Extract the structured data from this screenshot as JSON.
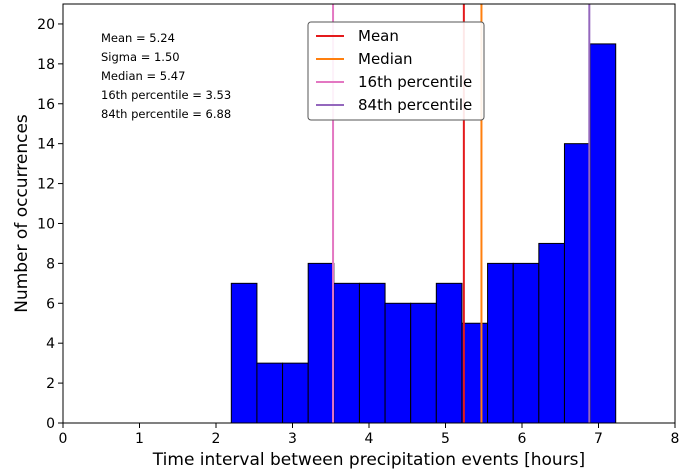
{
  "chart_data": {
    "type": "bar",
    "subtype": "histogram",
    "xlabel": "Time interval between precipitation events [hours]",
    "ylabel": "Number of occurrences",
    "xlim": [
      0,
      8
    ],
    "ylim": [
      0,
      21
    ],
    "xticks": [
      0,
      1,
      2,
      3,
      4,
      5,
      6,
      7,
      8
    ],
    "yticks": [
      0,
      2,
      4,
      6,
      8,
      10,
      12,
      14,
      16,
      18,
      20
    ],
    "bin_edges": [
      2.2,
      2.535,
      2.87,
      3.205,
      3.54,
      3.875,
      4.21,
      4.545,
      4.88,
      5.215,
      5.55,
      5.885,
      6.22,
      6.555,
      6.89,
      7.225
    ],
    "values": [
      7,
      3,
      3,
      8,
      7,
      7,
      6,
      6,
      7,
      5,
      8,
      8,
      9,
      14,
      19
    ],
    "bar_color": "#0000ff",
    "bar_edge_color": "#000000",
    "grid": false,
    "stats": [
      "Mean = 5.24",
      "Sigma = 1.50",
      "Median = 5.47",
      "16th percentile = 3.53",
      "84th percentile = 6.88"
    ],
    "vlines": [
      {
        "name": "Mean",
        "x": 5.24,
        "color": "#e41a1c"
      },
      {
        "name": "Median",
        "x": 5.47,
        "color": "#ff7f0e"
      },
      {
        "name": "16th percentile",
        "x": 3.53,
        "color": "#e377c2"
      },
      {
        "name": "84th percentile",
        "x": 6.88,
        "color": "#9467bd"
      }
    ],
    "legend_position": "top-center"
  }
}
